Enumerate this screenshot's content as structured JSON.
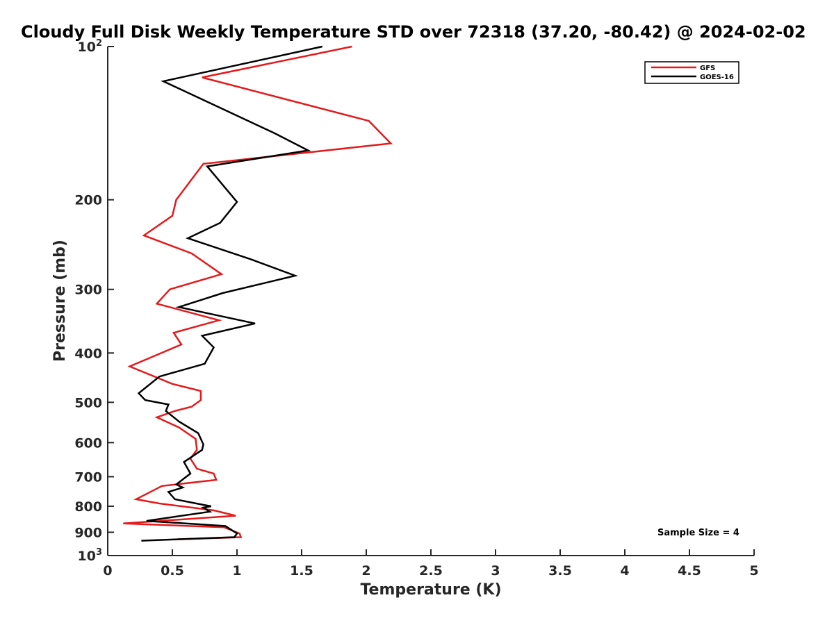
{
  "chart_data": {
    "type": "line",
    "title": "Cloudy Full Disk Weekly Temperature STD over 72318 (37.20, -80.42) @ 2024-02-02",
    "xlabel": "Temperature (K)",
    "ylabel": "Pressure (mb)",
    "xlim": [
      0,
      5
    ],
    "ylim": [
      100,
      1000
    ],
    "yscale": "log",
    "y_reversed": true,
    "x_ticks": [
      0,
      0.5,
      1,
      1.5,
      2,
      2.5,
      3,
      3.5,
      4,
      4.5,
      5
    ],
    "x_tick_labels": [
      "0",
      "0.5",
      "1",
      "1.5",
      "2",
      "2.5",
      "3",
      "3.5",
      "4",
      "4.5",
      "5"
    ],
    "y_ticks": [
      100,
      200,
      300,
      400,
      500,
      600,
      700,
      800,
      900,
      1000
    ],
    "y_tick_labels": [
      {
        "base": "10",
        "exp": "2"
      },
      {
        "base": "200",
        "exp": ""
      },
      {
        "base": "300",
        "exp": ""
      },
      {
        "base": "400",
        "exp": ""
      },
      {
        "base": "500",
        "exp": ""
      },
      {
        "base": "600",
        "exp": ""
      },
      {
        "base": "700",
        "exp": ""
      },
      {
        "base": "800",
        "exp": ""
      },
      {
        "base": "900",
        "exp": ""
      },
      {
        "base": "10",
        "exp": "3"
      }
    ],
    "grid": false,
    "legend_position": "top-right",
    "series": [
      {
        "name": "GFS",
        "color": "#e41a1c",
        "points": [
          [
            1.89,
            100
          ],
          [
            0.73,
            115
          ],
          [
            2.02,
            140
          ],
          [
            2.19,
            155
          ],
          [
            0.74,
            170
          ],
          [
            0.53,
            200
          ],
          [
            0.5,
            215
          ],
          [
            0.28,
            235
          ],
          [
            0.65,
            255
          ],
          [
            0.88,
            280
          ],
          [
            0.48,
            300
          ],
          [
            0.38,
            320
          ],
          [
            0.86,
            345
          ],
          [
            0.51,
            365
          ],
          [
            0.57,
            385
          ],
          [
            0.17,
            425
          ],
          [
            0.5,
            460
          ],
          [
            0.72,
            475
          ],
          [
            0.72,
            495
          ],
          [
            0.65,
            510
          ],
          [
            0.52,
            520
          ],
          [
            0.38,
            535
          ],
          [
            0.55,
            560
          ],
          [
            0.68,
            590
          ],
          [
            0.69,
            620
          ],
          [
            0.64,
            645
          ],
          [
            0.69,
            675
          ],
          [
            0.82,
            690
          ],
          [
            0.84,
            710
          ],
          [
            0.42,
            730
          ],
          [
            0.22,
            775
          ],
          [
            0.4,
            790
          ],
          [
            0.82,
            815
          ],
          [
            0.99,
            835
          ],
          [
            0.12,
            865
          ],
          [
            0.9,
            880
          ],
          [
            1.02,
            905
          ],
          [
            1.03,
            920
          ],
          [
            0.51,
            930
          ]
        ]
      },
      {
        "name": "GOES-16",
        "color": "#000000",
        "points": [
          [
            1.66,
            100
          ],
          [
            0.43,
            117
          ],
          [
            1.29,
            148
          ],
          [
            1.55,
            160
          ],
          [
            0.77,
            172
          ],
          [
            1.0,
            202
          ],
          [
            0.87,
            222
          ],
          [
            0.62,
            238
          ],
          [
            1.11,
            262
          ],
          [
            1.45,
            282
          ],
          [
            0.89,
            305
          ],
          [
            0.55,
            325
          ],
          [
            1.14,
            350
          ],
          [
            0.73,
            370
          ],
          [
            0.82,
            390
          ],
          [
            0.75,
            420
          ],
          [
            0.4,
            445
          ],
          [
            0.24,
            480
          ],
          [
            0.29,
            495
          ],
          [
            0.47,
            505
          ],
          [
            0.45,
            520
          ],
          [
            0.55,
            545
          ],
          [
            0.7,
            575
          ],
          [
            0.74,
            605
          ],
          [
            0.73,
            620
          ],
          [
            0.59,
            655
          ],
          [
            0.64,
            690
          ],
          [
            0.53,
            725
          ],
          [
            0.58,
            735
          ],
          [
            0.47,
            750
          ],
          [
            0.52,
            775
          ],
          [
            0.74,
            795
          ],
          [
            0.8,
            800
          ],
          [
            0.74,
            805
          ],
          [
            0.79,
            820
          ],
          [
            0.3,
            855
          ],
          [
            0.91,
            875
          ],
          [
            1.0,
            905
          ],
          [
            0.98,
            920
          ],
          [
            0.26,
            935
          ]
        ]
      }
    ],
    "legend": [
      {
        "label": "GFS",
        "color": "#e41a1c"
      },
      {
        "label": "GOES-16",
        "color": "#000000"
      }
    ],
    "annotation": "Sample Size = 4"
  }
}
